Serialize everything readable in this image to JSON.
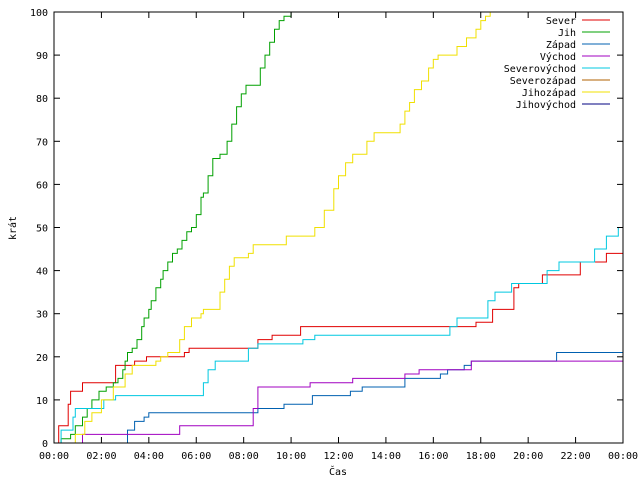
{
  "chart_data": {
    "type": "line",
    "xlabel": "Čas",
    "ylabel": "krát",
    "xlim": [
      0,
      24
    ],
    "ylim": [
      0,
      100
    ],
    "x_ticks": [
      {
        "value": 0,
        "label": "00:00"
      },
      {
        "value": 2,
        "label": "02:00"
      },
      {
        "value": 4,
        "label": "04:00"
      },
      {
        "value": 6,
        "label": "06:00"
      },
      {
        "value": 8,
        "label": "08:00"
      },
      {
        "value": 10,
        "label": "10:00"
      },
      {
        "value": 12,
        "label": "12:00"
      },
      {
        "value": 14,
        "label": "14:00"
      },
      {
        "value": 16,
        "label": "16:00"
      },
      {
        "value": 18,
        "label": "18:00"
      },
      {
        "value": 20,
        "label": "20:00"
      },
      {
        "value": 22,
        "label": "22:00"
      },
      {
        "value": 24,
        "label": "00:00"
      }
    ],
    "y_ticks": [
      {
        "value": 0,
        "label": "0"
      },
      {
        "value": 10,
        "label": "10"
      },
      {
        "value": 20,
        "label": "20"
      },
      {
        "value": 30,
        "label": "30"
      },
      {
        "value": 40,
        "label": "40"
      },
      {
        "value": 50,
        "label": "50"
      },
      {
        "value": 60,
        "label": "60"
      },
      {
        "value": 70,
        "label": "70"
      },
      {
        "value": 80,
        "label": "80"
      },
      {
        "value": 90,
        "label": "90"
      },
      {
        "value": 100,
        "label": "100"
      }
    ],
    "grid": false,
    "legend_position": "top-right",
    "series": [
      {
        "name": "Sever",
        "color": "#e00000",
        "step": true,
        "points": [
          [
            0,
            0
          ],
          [
            0.2,
            4
          ],
          [
            0.6,
            9
          ],
          [
            0.7,
            12
          ],
          [
            1.2,
            14
          ],
          [
            2.6,
            18
          ],
          [
            3.4,
            19
          ],
          [
            3.9,
            20
          ],
          [
            5.5,
            21
          ],
          [
            5.7,
            22
          ],
          [
            8.6,
            24
          ],
          [
            9.2,
            25
          ],
          [
            10.4,
            27
          ],
          [
            17.8,
            28
          ],
          [
            18.5,
            31
          ],
          [
            19.4,
            36
          ],
          [
            19.6,
            37
          ],
          [
            20.6,
            39
          ],
          [
            22.2,
            42
          ],
          [
            23.3,
            44
          ],
          [
            24,
            44
          ]
        ]
      },
      {
        "name": "Jih",
        "color": "#00a000",
        "step": true,
        "points": [
          [
            0,
            0
          ],
          [
            0.3,
            1
          ],
          [
            0.7,
            2
          ],
          [
            0.9,
            4
          ],
          [
            1.2,
            6
          ],
          [
            1.4,
            8
          ],
          [
            1.6,
            10
          ],
          [
            1.9,
            12
          ],
          [
            2.2,
            13
          ],
          [
            2.5,
            14
          ],
          [
            2.7,
            15
          ],
          [
            2.9,
            17
          ],
          [
            3.0,
            19
          ],
          [
            3.1,
            21
          ],
          [
            3.3,
            22
          ],
          [
            3.5,
            24
          ],
          [
            3.7,
            27
          ],
          [
            3.8,
            29
          ],
          [
            4.0,
            31
          ],
          [
            4.1,
            33
          ],
          [
            4.3,
            36
          ],
          [
            4.5,
            38
          ],
          [
            4.6,
            40
          ],
          [
            4.8,
            42
          ],
          [
            5.0,
            44
          ],
          [
            5.2,
            45
          ],
          [
            5.4,
            47
          ],
          [
            5.6,
            49
          ],
          [
            5.8,
            50
          ],
          [
            6.0,
            53
          ],
          [
            6.2,
            57
          ],
          [
            6.3,
            58
          ],
          [
            6.5,
            62
          ],
          [
            6.7,
            66
          ],
          [
            7.0,
            67
          ],
          [
            7.3,
            70
          ],
          [
            7.5,
            74
          ],
          [
            7.7,
            78
          ],
          [
            7.9,
            81
          ],
          [
            8.1,
            83
          ],
          [
            8.7,
            87
          ],
          [
            8.9,
            90
          ],
          [
            9.1,
            93
          ],
          [
            9.3,
            96
          ],
          [
            9.5,
            98
          ],
          [
            9.7,
            99
          ],
          [
            10.0,
            100
          ],
          [
            24,
            100
          ]
        ]
      },
      {
        "name": "Západ",
        "color": "#0060b0",
        "step": true,
        "points": [
          [
            0,
            0
          ],
          [
            3.1,
            3
          ],
          [
            3.4,
            5
          ],
          [
            3.8,
            6
          ],
          [
            4.0,
            7
          ],
          [
            8.6,
            8
          ],
          [
            9.7,
            9
          ],
          [
            10.9,
            11
          ],
          [
            12.5,
            12
          ],
          [
            13.0,
            13
          ],
          [
            14.8,
            15
          ],
          [
            16.3,
            16
          ],
          [
            16.6,
            17
          ],
          [
            17.3,
            18
          ],
          [
            17.6,
            19
          ],
          [
            21.2,
            21
          ],
          [
            24,
            21
          ]
        ]
      },
      {
        "name": "Východ",
        "color": "#a000c0",
        "step": true,
        "points": [
          [
            0,
            0
          ],
          [
            1.2,
            2
          ],
          [
            5.3,
            4
          ],
          [
            8.4,
            8
          ],
          [
            8.6,
            13
          ],
          [
            8.8,
            13
          ],
          [
            10.8,
            14
          ],
          [
            12.6,
            15
          ],
          [
            14.8,
            16
          ],
          [
            15.4,
            17
          ],
          [
            17.6,
            19
          ],
          [
            24,
            19
          ]
        ]
      },
      {
        "name": "Severovýchod",
        "color": "#00c8e0",
        "step": true,
        "points": [
          [
            0,
            0
          ],
          [
            0.3,
            3
          ],
          [
            0.8,
            6
          ],
          [
            0.9,
            8
          ],
          [
            2.1,
            10
          ],
          [
            2.6,
            11
          ],
          [
            6.3,
            14
          ],
          [
            6.5,
            17
          ],
          [
            6.8,
            19
          ],
          [
            8.2,
            22
          ],
          [
            8.6,
            23
          ],
          [
            10.5,
            24
          ],
          [
            11.0,
            25
          ],
          [
            16.7,
            27
          ],
          [
            17.0,
            29
          ],
          [
            18.3,
            33
          ],
          [
            18.6,
            35
          ],
          [
            19.3,
            37
          ],
          [
            20.8,
            40
          ],
          [
            21.3,
            42
          ],
          [
            22.8,
            45
          ],
          [
            23.3,
            48
          ],
          [
            23.8,
            50
          ],
          [
            24,
            50
          ]
        ]
      },
      {
        "name": "Severozápad",
        "color": "#b06000",
        "step": true,
        "points": [
          [
            0,
            0
          ],
          [
            24,
            0
          ]
        ]
      },
      {
        "name": "Jihozápad",
        "color": "#f0e000",
        "step": true,
        "points": [
          [
            0,
            0
          ],
          [
            0.9,
            2
          ],
          [
            1.3,
            5
          ],
          [
            1.6,
            7
          ],
          [
            2.0,
            10
          ],
          [
            2.5,
            13
          ],
          [
            3.0,
            16
          ],
          [
            3.3,
            18
          ],
          [
            4.3,
            19
          ],
          [
            4.5,
            20
          ],
          [
            4.8,
            21
          ],
          [
            5.3,
            24
          ],
          [
            5.5,
            27
          ],
          [
            5.8,
            29
          ],
          [
            6.2,
            30
          ],
          [
            6.3,
            31
          ],
          [
            7.0,
            35
          ],
          [
            7.2,
            38
          ],
          [
            7.4,
            41
          ],
          [
            7.6,
            43
          ],
          [
            8.2,
            44
          ],
          [
            8.4,
            46
          ],
          [
            9.8,
            48
          ],
          [
            11.0,
            50
          ],
          [
            11.4,
            54
          ],
          [
            11.8,
            59
          ],
          [
            12.0,
            62
          ],
          [
            12.3,
            65
          ],
          [
            12.6,
            67
          ],
          [
            13.2,
            70
          ],
          [
            13.5,
            72
          ],
          [
            14.6,
            74
          ],
          [
            14.8,
            77
          ],
          [
            15.0,
            79
          ],
          [
            15.2,
            82
          ],
          [
            15.5,
            84
          ],
          [
            15.8,
            87
          ],
          [
            16.0,
            89
          ],
          [
            16.2,
            90
          ],
          [
            17.0,
            92
          ],
          [
            17.4,
            94
          ],
          [
            17.8,
            96
          ],
          [
            18.0,
            98
          ],
          [
            18.2,
            99
          ],
          [
            18.4,
            100
          ],
          [
            24,
            100
          ]
        ]
      },
      {
        "name": "Jihovýchod",
        "color": "#000080",
        "step": true,
        "points": [
          [
            0,
            0
          ],
          [
            24,
            0
          ]
        ]
      }
    ]
  }
}
